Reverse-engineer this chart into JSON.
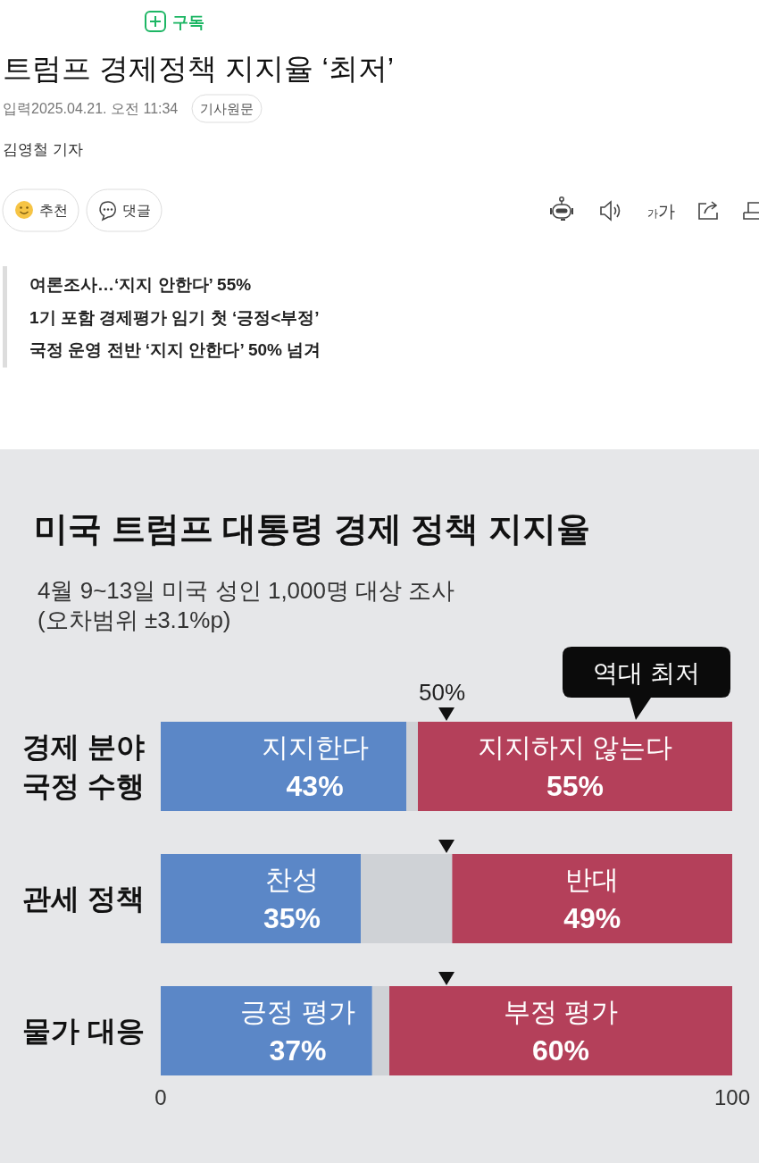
{
  "chart_data": [
    {
      "type": "other",
      "title": "트럼프 경제정책 지지율 ‘최저’",
      "subtitle": "여론조사…‘지지 안한다’ 55%\n1기 포함 경제평가 임기 첫 ‘긍정<부정’\n국정 운영 전반 ‘지지 안한다’ 50% 넘겨",
      "annotations": [
        "구독",
        "입력2025.04.21. 오전 11:34",
        "기사원문",
        "김영철 기자",
        "추천",
        "댓글",
        "가가"
      ]
    },
    {
      "type": "bar",
      "orientation": "horizontal",
      "stacked": true,
      "title": "미국 트럼프 대통령 경제 정책 지지율",
      "subtitle": "4월 9~13일 미국 성인 1,000명 대상 조사\n(오차범위 ±3.1%p)",
      "categories": [
        "경제 분야\n국정 수행",
        "관세 정책",
        "물가 대응"
      ],
      "series": [
        {
          "color": "#5b87c7",
          "values": [
            43,
            35,
            37
          ],
          "value_labels": [
            "지지한다\n43%",
            "찬성\n35%",
            "긍정 평가\n37%"
          ]
        },
        {
          "color": "#cfd2d6",
          "values": [
            2,
            16,
            3
          ]
        },
        {
          "color": "#b4405a",
          "values": [
            55,
            49,
            60
          ],
          "value_labels": [
            "지지하지 않는다\n55%",
            "반대\n49%",
            "부정 평가\n60%"
          ]
        },
        {
          "type": "scatter",
          "marker": "triangle",
          "color": "#111111",
          "x": [
            "경제 분야\n국정 수행",
            "관세 정책",
            "물가 대응"
          ],
          "values": [
            50,
            50,
            50
          ],
          "value_labels": [
            "50%",
            null,
            null
          ]
        }
      ],
      "xlim": [
        0,
        100
      ],
      "xticks": [
        0,
        100
      ],
      "annotations": [
        "역대 최저"
      ]
    }
  ]
}
